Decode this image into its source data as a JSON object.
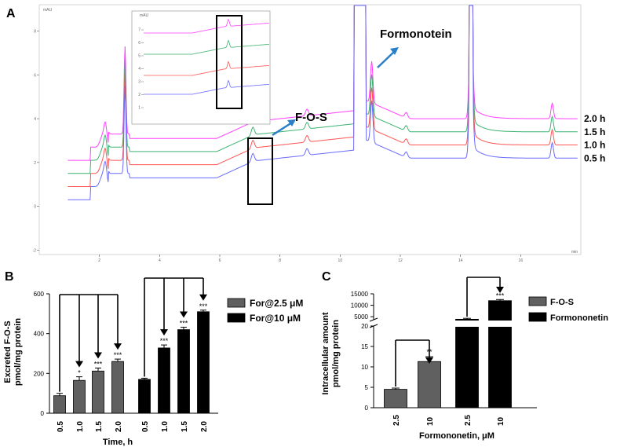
{
  "chart_data": [
    {
      "panel": "A",
      "type": "line",
      "y_unit": "mAU",
      "x_unit": "min",
      "x_ticks": [
        "2",
        "4",
        "6",
        "8",
        "10",
        "12",
        "14",
        "16"
      ],
      "y_ticks": [
        "-2",
        "0",
        "2",
        "4",
        "6",
        "8"
      ],
      "xlim": [
        0,
        18
      ],
      "ylim": [
        -2.2,
        9.2
      ],
      "series": [
        {
          "name": "2.0 h",
          "color": "#ff40ff",
          "offset": 2.1
        },
        {
          "name": "1.5 h",
          "color": "#3cb371",
          "offset": 1.5
        },
        {
          "name": "1.0 h",
          "color": "#ff5555",
          "offset": 0.9
        },
        {
          "name": "0.5 h",
          "color": "#6a6aff",
          "offset": 0.3
        }
      ],
      "annotations": {
        "fos": "F-O-S",
        "formononetin": "Formonotein"
      },
      "inset": {
        "y_unit": "mAU",
        "y_ticks": [
          "1",
          "2",
          "3",
          "4",
          "5",
          "6",
          "7"
        ]
      }
    },
    {
      "panel": "B",
      "type": "bar",
      "ylabel_line1": "Excreted F-O-S",
      "ylabel_line2": "pmol/mg protein",
      "xlabel": "Time, h",
      "ylim": [
        0,
        600
      ],
      "y_ticks": [
        "0",
        "200",
        "400",
        "600"
      ],
      "series": [
        {
          "name": "For@2.5 μM",
          "color": "#606060",
          "categories": [
            "0.5",
            "1.0",
            "1.5",
            "2.0"
          ],
          "values": [
            88,
            165,
            212,
            260
          ],
          "errors": [
            12,
            18,
            15,
            12
          ],
          "significance": [
            "",
            "*",
            "***",
            "***"
          ]
        },
        {
          "name": "For@10 μM",
          "color": "#000000",
          "categories": [
            "0.5",
            "1.0",
            "1.5",
            "2.0"
          ],
          "values": [
            170,
            328,
            420,
            510
          ],
          "errors": [
            6,
            15,
            12,
            8
          ],
          "significance": [
            "",
            "***",
            "***",
            "***"
          ]
        }
      ]
    },
    {
      "panel": "C",
      "type": "bar",
      "ylabel_line1": "Intracellular amount",
      "ylabel_line2": "pmol/mg protein",
      "xlabel": "Formononetin, μM",
      "y_ticks_lower": [
        "0",
        "5",
        "10",
        "15",
        "20"
      ],
      "y_ticks_upper": [
        "5000",
        "10000",
        "15000"
      ],
      "series": [
        {
          "name": "F-O-S",
          "color": "#606060",
          "categories": [
            "2.5",
            "10"
          ],
          "values": [
            4.5,
            11.3
          ],
          "errors": [
            0.3,
            1.2
          ],
          "significance": [
            "",
            "**"
          ]
        },
        {
          "name": "Formononetin",
          "color": "#000000",
          "categories": [
            "2.5",
            "10"
          ],
          "values": [
            3900,
            12000
          ],
          "errors": [
            400,
            500
          ],
          "significance": [
            "",
            "***"
          ]
        }
      ]
    }
  ]
}
